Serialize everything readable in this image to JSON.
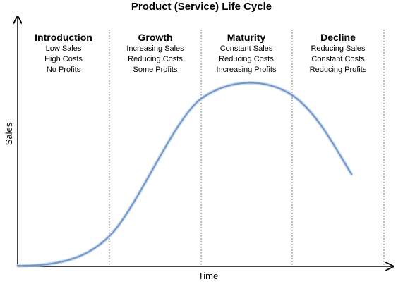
{
  "title": "Product (Service) Life Cycle",
  "axes": {
    "y_label": "Sales",
    "x_label": "Time"
  },
  "stages": [
    {
      "name": "Introduction",
      "lines": [
        "Low Sales",
        "High Costs",
        "No Profits"
      ]
    },
    {
      "name": "Growth",
      "lines": [
        "Increasing Sales",
        "Reducing Costs",
        "Some Profits"
      ]
    },
    {
      "name": "Maturity",
      "lines": [
        "Constant Sales",
        "Reducing Costs",
        "Increasing Profits"
      ]
    },
    {
      "name": "Decline",
      "lines": [
        "Reducing Sales",
        "Constant Costs",
        "Reducing Profits"
      ]
    }
  ],
  "colors": {
    "curve": "#6d95c6",
    "curve_glow": "#b9cde6",
    "axis": "#000000",
    "divider": "#555555"
  }
}
